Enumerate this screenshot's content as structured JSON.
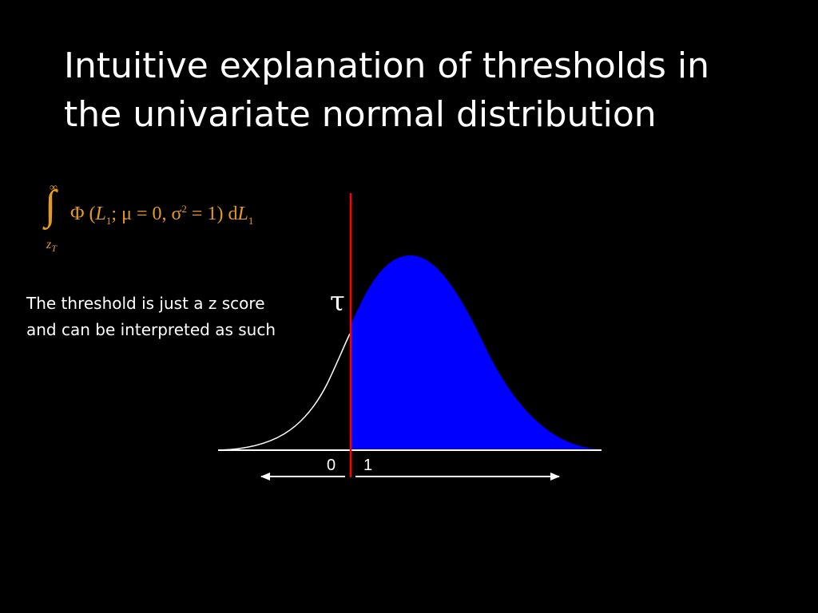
{
  "slide": {
    "title_line1": "Intuitive explanation of thresholds in",
    "title_line2": "the univariate normal distribution",
    "note_line1": "The threshold is just a z score",
    "note_line2": "and can be interpreted as such",
    "tau_symbol": "τ"
  },
  "formula": {
    "upper_limit": "∞",
    "lower_limit": "z",
    "lower_limit_sub": "T",
    "integrand_func": "Φ",
    "variable": "L",
    "variable_sub": "1",
    "mu_text": "; μ = 0, σ",
    "sigma_power": "2",
    "tail_text": " = 1) d",
    "diff_var": "L",
    "diff_sub": "1"
  },
  "axis": {
    "tick_left": "0",
    "tick_right": "1"
  },
  "colors": {
    "background": "#000000",
    "shaded_area": "#0000ff",
    "threshold_line": "#ff0000",
    "formula": "#e39b1c",
    "text": "#ffffff"
  }
}
